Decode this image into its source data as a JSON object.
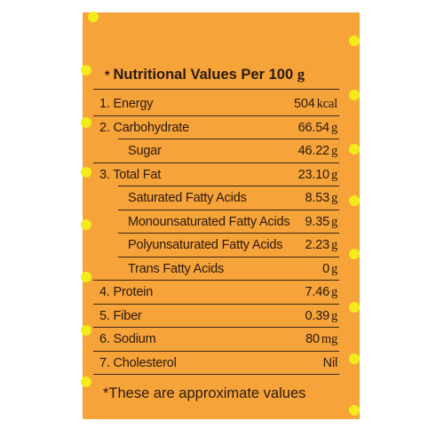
{
  "title": {
    "star": "*",
    "text": "Nutritional Values Per 100",
    "unit": "g"
  },
  "rows": [
    {
      "label": "1.  Energy",
      "value": "504",
      "unit": "kcal"
    },
    {
      "label": "2.  Carbohydrate",
      "value": "66.54",
      "unit": "g"
    },
    {
      "label": "Sugar",
      "value": "46.22",
      "unit": "g"
    },
    {
      "label": "3.  Total Fat",
      "value": "23.10",
      "unit": "g"
    },
    {
      "label": "Saturated Fatty Acids",
      "value": "8.53",
      "unit": "g"
    },
    {
      "label": "Monounsaturated Fatty Acids",
      "value": "9.35",
      "unit": "g"
    },
    {
      "label": "Polyunsaturated Fatty Acids",
      "value": "2.23",
      "unit": "g"
    },
    {
      "label": "Trans Fatty Acids",
      "value": "0",
      "unit": "g"
    },
    {
      "label": "4.  Protein",
      "value": "7.46",
      "unit": "g"
    },
    {
      "label": "5.  Fiber",
      "value": "0.39",
      "unit": "g"
    },
    {
      "label": "6.  Sodium",
      "value": "80",
      "unit": "mg"
    },
    {
      "label": "7.  Cholesterol",
      "value": "Nil",
      "unit": ""
    }
  ],
  "footer": {
    "star": "*",
    "text": "These are approximate values"
  },
  "colors": {
    "background": "#f6a339",
    "dots": "#f4ec1a",
    "text": "#2a1a10"
  }
}
